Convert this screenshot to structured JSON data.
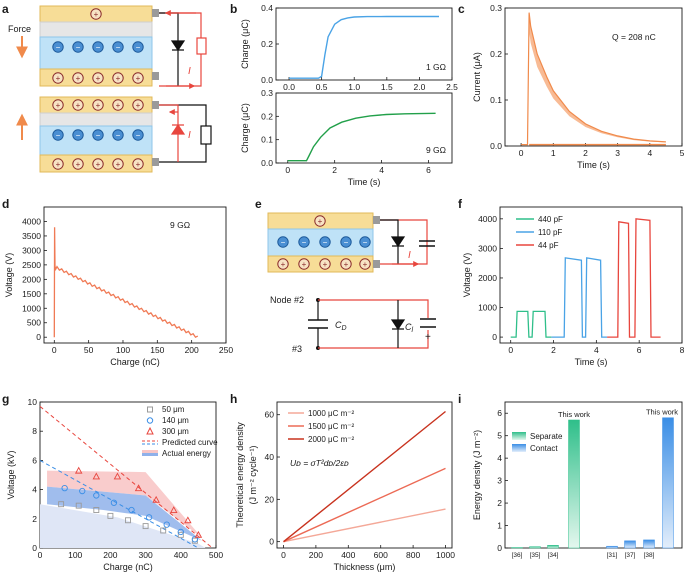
{
  "figure": {
    "panel_letters": [
      "a",
      "b",
      "c",
      "d",
      "e",
      "f",
      "g",
      "h",
      "i"
    ],
    "panel_a": {
      "force_label": "Force",
      "current_label": "I",
      "charge_symbol": "+",
      "electret_symbol": "−"
    },
    "panel_e": {
      "current_label": "I",
      "node_top": "Node #2",
      "node_bottom": "#3",
      "cap_d": "C",
      "cap_d_sub": "D",
      "cap_l": "C",
      "cap_l_sub": "l",
      "plus": "+"
    }
  },
  "chart_data": [
    {
      "id": "b_top",
      "type": "line",
      "title": "",
      "xlabel": "",
      "ylabel": "Charge (μC)",
      "xlim": [
        -0.2,
        2.5
      ],
      "ylim": [
        0,
        0.4
      ],
      "xticks": [
        "0.0",
        "0.5",
        "1.0",
        "1.5",
        "2.0",
        "2.5"
      ],
      "yticks": [
        "0.0",
        "0.2",
        "0.4"
      ],
      "annotation": "1 GΩ",
      "series": [
        {
          "name": "1 GΩ",
          "color": "#4aa3e6",
          "x": [
            0,
            0.45,
            0.5,
            0.55,
            0.6,
            0.7,
            0.8,
            0.9,
            1.0,
            1.2,
            1.5,
            2.0,
            2.3
          ],
          "y": [
            0.01,
            0.01,
            0.02,
            0.14,
            0.24,
            0.31,
            0.335,
            0.345,
            0.35,
            0.352,
            0.353,
            0.353,
            0.353
          ]
        }
      ]
    },
    {
      "id": "b_bottom",
      "type": "line",
      "title": "",
      "xlabel": "Time (s)",
      "ylabel": "Charge (μC)",
      "xlim": [
        -0.5,
        7
      ],
      "ylim": [
        0,
        0.3
      ],
      "xticks": [
        "0",
        "2",
        "4",
        "6"
      ],
      "yticks": [
        "0.0",
        "0.1",
        "0.2",
        "0.3"
      ],
      "annotation": "9 GΩ",
      "series": [
        {
          "name": "9 GΩ",
          "color": "#22a04a",
          "x": [
            0,
            0.8,
            0.9,
            1.1,
            1.4,
            1.8,
            2.3,
            2.9,
            3.5,
            4.2,
            5.0,
            6.3
          ],
          "y": [
            0.01,
            0.01,
            0.03,
            0.07,
            0.11,
            0.15,
            0.175,
            0.192,
            0.202,
            0.208,
            0.211,
            0.213
          ]
        }
      ]
    },
    {
      "id": "c",
      "type": "area",
      "title": "",
      "xlabel": "Time (s)",
      "ylabel": "Current (μA)",
      "xlim": [
        -0.5,
        5
      ],
      "ylim": [
        0,
        0.3
      ],
      "xticks": [
        "0",
        "1",
        "2",
        "3",
        "4",
        "5"
      ],
      "yticks": [
        "0.0",
        "0.1",
        "0.2",
        "0.3"
      ],
      "annotation": "Q = 208 nC",
      "series": [
        {
          "name": "current",
          "color": "#f08a4b",
          "x": [
            0,
            0.2,
            0.25,
            0.3,
            0.5,
            0.8,
            1.0,
            1.5,
            2.0,
            2.5,
            3.0,
            3.5,
            4.0,
            4.5
          ],
          "y": [
            0.003,
            0.003,
            0.29,
            0.26,
            0.2,
            0.15,
            0.12,
            0.075,
            0.048,
            0.032,
            0.022,
            0.015,
            0.011,
            0.009
          ]
        }
      ]
    },
    {
      "id": "d",
      "type": "line",
      "title": "",
      "xlabel": "Charge (nC)",
      "ylabel": "Voltage (V)",
      "xlim": [
        -15,
        250
      ],
      "ylim": [
        -200,
        4500
      ],
      "xticks": [
        "0",
        "50",
        "100",
        "150",
        "200",
        "250"
      ],
      "yticks": [
        "0",
        "500",
        "1000",
        "1500",
        "2000",
        "2500",
        "3000",
        "3500",
        "4000"
      ],
      "annotation": "9 GΩ",
      "series": [
        {
          "name": "9 GΩ",
          "color": "#f07a55",
          "x": [
            0,
            0.5,
            1,
            2,
            4,
            6,
            209
          ],
          "y": [
            0,
            3800,
            2450,
            2350,
            2400,
            2380,
            0
          ]
        }
      ]
    },
    {
      "id": "f",
      "type": "line",
      "title": "",
      "xlabel": "Time (s)",
      "ylabel": "Voltage (V)",
      "xlim": [
        -0.5,
        8
      ],
      "ylim": [
        -200,
        4400
      ],
      "xticks": [
        "0",
        "2",
        "4",
        "6",
        "8"
      ],
      "yticks": [
        "0",
        "1000",
        "2000",
        "3000",
        "4000"
      ],
      "legend_position": "top-left",
      "series": [
        {
          "name": "440 pF",
          "color": "#2fbf8a",
          "x": [
            0,
            0.25,
            0.3,
            0.8,
            0.85,
            1.0,
            1.05,
            1.6,
            1.65,
            1.9
          ],
          "y": [
            0,
            0,
            870,
            870,
            0,
            0,
            870,
            870,
            0,
            0
          ]
        },
        {
          "name": "110 pF",
          "color": "#4aa3e6",
          "x": [
            1.9,
            2.5,
            2.55,
            3.3,
            3.35,
            3.5,
            3.55,
            4.2,
            4.25,
            4.5
          ],
          "y": [
            0,
            0,
            2680,
            2600,
            0,
            0,
            2680,
            2600,
            0,
            0
          ]
        },
        {
          "name": "44 pF",
          "color": "#e8463e",
          "x": [
            4.5,
            5.0,
            5.05,
            5.5,
            5.55,
            5.8,
            5.85,
            6.5,
            6.55,
            7.0
          ],
          "y": [
            0,
            0,
            3900,
            3850,
            0,
            0,
            4000,
            3950,
            0,
            0
          ]
        }
      ]
    },
    {
      "id": "g",
      "type": "scatter",
      "title": "",
      "xlabel": "Charge (nC)",
      "ylabel": "Voltage (kV)",
      "xlim": [
        0,
        500
      ],
      "ylim": [
        0,
        10
      ],
      "xticks": [
        "0",
        "100",
        "200",
        "300",
        "400",
        "500"
      ],
      "yticks": [
        "0",
        "2",
        "4",
        "6",
        "8",
        "10"
      ],
      "legend_position": "top-right",
      "legend": [
        "50 μm",
        "140 μm",
        "300 μm",
        "Predicted curve",
        "Actual energy"
      ],
      "series": [
        {
          "name": "50 μm",
          "color": "#9a9a9a",
          "marker": "square",
          "x": [
            60,
            110,
            160,
            200,
            250,
            300,
            350,
            400,
            440
          ],
          "y": [
            3.0,
            2.9,
            2.6,
            2.2,
            1.9,
            1.5,
            1.2,
            0.9,
            0.5
          ]
        },
        {
          "name": "140 μm",
          "color": "#3a8ee6",
          "marker": "circle",
          "x": [
            70,
            120,
            160,
            210,
            260,
            310,
            360,
            400,
            440
          ],
          "y": [
            4.1,
            3.9,
            3.6,
            3.1,
            2.6,
            2.1,
            1.6,
            1.1,
            0.6
          ]
        },
        {
          "name": "300 μm",
          "color": "#e8463e",
          "marker": "triangle",
          "x": [
            110,
            160,
            220,
            280,
            330,
            380,
            420,
            450
          ],
          "y": [
            5.3,
            4.9,
            4.9,
            4.1,
            3.3,
            2.6,
            1.9,
            0.9
          ]
        },
        {
          "name": "Predicted 300 μm",
          "color": "#e8463e",
          "style": "dashed",
          "x": [
            0,
            490
          ],
          "y": [
            9.7,
            0
          ]
        },
        {
          "name": "Predicted 140 μm",
          "color": "#3a8ee6",
          "style": "dashed",
          "x": [
            0,
            450
          ],
          "y": [
            6.0,
            0
          ]
        }
      ]
    },
    {
      "id": "h",
      "type": "line",
      "title": "",
      "xlabel": "Thickness (μm)",
      "ylabel": "Theoretical energy density",
      "ylabel2": "(J m⁻² cycle⁻¹)",
      "xlim": [
        -40,
        1040
      ],
      "ylim": [
        -3,
        66
      ],
      "xticks": [
        "0",
        "200",
        "400",
        "600",
        "800",
        "1000"
      ],
      "yticks": [
        "0",
        "20",
        "40",
        "60"
      ],
      "legend_position": "top-left",
      "equation": "Uᴅ = σT²dᴅ/2εᴅ",
      "series": [
        {
          "name": "1000 μC m⁻²",
          "color": "#f4a898",
          "x": [
            0,
            1000
          ],
          "y": [
            0,
            15.4
          ]
        },
        {
          "name": "1500 μC m⁻²",
          "color": "#ec6a55",
          "x": [
            0,
            1000
          ],
          "y": [
            0,
            34.6
          ]
        },
        {
          "name": "2000 μC m⁻²",
          "color": "#c8321e",
          "x": [
            0,
            1000
          ],
          "y": [
            0,
            61.5
          ]
        }
      ]
    },
    {
      "id": "i",
      "type": "bar",
      "title": "",
      "xlabel": "",
      "ylabel": "Energy density (J m⁻²)",
      "ylim": [
        0,
        6.5
      ],
      "yticks": [
        "0",
        "1",
        "2",
        "3",
        "4",
        "5",
        "6"
      ],
      "legend_position": "top-left",
      "legend": [
        "Separate",
        "Contact"
      ],
      "categories": [
        "[36]",
        "[35]",
        "[34]",
        "This work",
        "[31]",
        "[37]",
        "[38]",
        "This work"
      ],
      "category_labels_bottom": [
        "[36]",
        "[35]",
        "[34]",
        "",
        "[31]",
        "[37]",
        "[38]",
        ""
      ],
      "category_labels_top": [
        "",
        "",
        "",
        "This work",
        "",
        "",
        "",
        "This work"
      ],
      "values": [
        0.02,
        0.06,
        0.12,
        5.7,
        0.08,
        0.32,
        0.36,
        5.8
      ],
      "groups": [
        "Separate",
        "Separate",
        "Separate",
        "Separate",
        "Contact",
        "Contact",
        "Contact",
        "Contact"
      ]
    }
  ],
  "colors": {
    "axis": "#1a1a1a",
    "electrode": "#f7dd97",
    "electrode_border": "#e1b95a",
    "electret": "#bfe2f7",
    "electret_border": "#8fc6ea",
    "gap": "#e6e6e6",
    "wire": "#e8463e",
    "orange_arrow": "#f08a4b",
    "g_red_band": "#f8c6c6",
    "g_blue_band": "#8fb1ea",
    "g_gray_band": "#dfe6f6",
    "i_green": "#2fbf8a",
    "i_blue": "#3a8ee6"
  }
}
